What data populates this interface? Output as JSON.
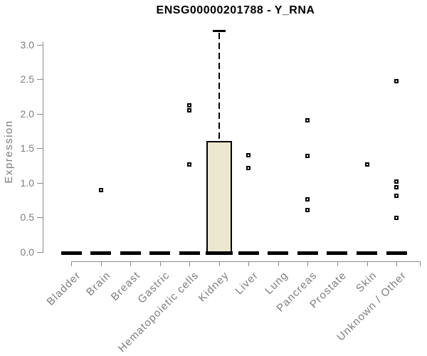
{
  "figure": {
    "title": "ENSG00000201788 - Y_RNA",
    "ylabel": "Expression"
  },
  "colors": {
    "box_fill": "#ECE7CF",
    "box_border": "#000000",
    "median": "#000000",
    "point": "#000000",
    "axis": "#8A8A8A",
    "muted_text": "#7D7D7D",
    "title_text": "#000000"
  },
  "chart_data": {
    "type": "boxplot",
    "title": "ENSG00000201788 - Y_RNA",
    "xlabel": "",
    "ylabel": "Expression",
    "ylim": [
      0.0,
      3.2
    ],
    "yticks": [
      0.0,
      0.5,
      1.0,
      1.5,
      2.0,
      2.5,
      3.0
    ],
    "grid": false,
    "legend": null,
    "categories": [
      "Bladder",
      "Brain",
      "Breast",
      "Gastric",
      "Hematopoietic cells",
      "Kidney",
      "Liver",
      "Lung",
      "Pancreas",
      "Prostate",
      "Skin",
      "Unknown / Other"
    ],
    "boxes": [
      {
        "category": "Bladder",
        "median": 0.0,
        "outliers": []
      },
      {
        "category": "Brain",
        "median": 0.0,
        "outliers": [
          0.9
        ]
      },
      {
        "category": "Breast",
        "median": 0.0,
        "outliers": []
      },
      {
        "category": "Gastric",
        "median": 0.0,
        "outliers": []
      },
      {
        "category": "Hematopoietic cells",
        "median": 0.0,
        "outliers": [
          2.12,
          2.05,
          1.27
        ]
      },
      {
        "category": "Kidney",
        "median": 0.0,
        "q1": 0.0,
        "q3": 1.61,
        "whisker_low": 0.0,
        "whisker_high": 3.2,
        "outliers": []
      },
      {
        "category": "Liver",
        "median": 0.0,
        "outliers": [
          1.4,
          1.22
        ]
      },
      {
        "category": "Lung",
        "median": 0.0,
        "outliers": []
      },
      {
        "category": "Pancreas",
        "median": 0.0,
        "outliers": [
          1.9,
          1.39,
          0.76,
          0.61
        ]
      },
      {
        "category": "Prostate",
        "median": 0.0,
        "outliers": []
      },
      {
        "category": "Skin",
        "median": 0.0,
        "outliers": [
          1.27
        ]
      },
      {
        "category": "Unknown / Other",
        "median": 0.0,
        "outliers": [
          2.47,
          1.02,
          0.94,
          0.81,
          0.49
        ]
      }
    ]
  }
}
